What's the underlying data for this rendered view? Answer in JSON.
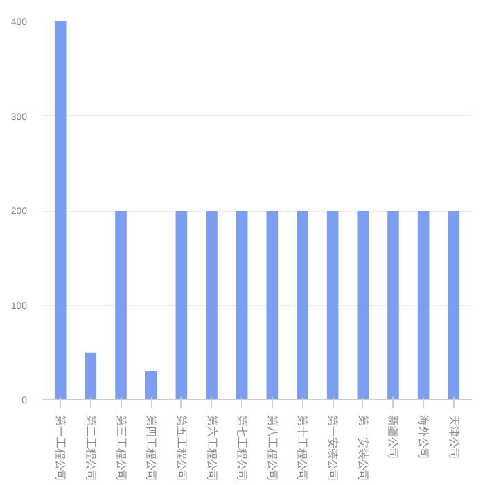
{
  "chart_data": {
    "type": "bar",
    "categories": [
      "第一工程公司",
      "第二工程公司",
      "第三工程公司",
      "第四工程公司",
      "第五工程公司",
      "第六工程公司",
      "第七工程公司",
      "第八工程公司",
      "第十工程公司",
      "第一安装公司",
      "第二安装公司",
      "新疆公司",
      "海外公司",
      "天津公司"
    ],
    "values": [
      400,
      50,
      200,
      30,
      200,
      200,
      200,
      200,
      200,
      200,
      200,
      200,
      200,
      200
    ],
    "color": "#7b9ef2",
    "ylim": [
      0,
      400
    ],
    "yticks": [
      0,
      100,
      200,
      300,
      400
    ],
    "grid": "y"
  }
}
